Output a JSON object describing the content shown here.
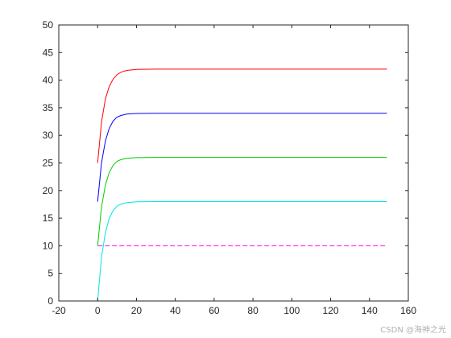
{
  "chart_data": {
    "type": "line",
    "title": "",
    "xlabel": "",
    "ylabel": "",
    "xlim": [
      -20,
      160
    ],
    "ylim": [
      0,
      50
    ],
    "x_ticks": [
      -20,
      0,
      20,
      40,
      60,
      80,
      100,
      120,
      140,
      160
    ],
    "y_ticks": [
      0,
      5,
      10,
      15,
      20,
      25,
      30,
      35,
      40,
      45,
      50
    ],
    "grid": false,
    "legend": "none",
    "x": [
      0,
      2,
      4,
      6,
      8,
      10,
      12,
      15,
      20,
      30,
      50,
      100,
      149
    ],
    "series": [
      {
        "color": "#ff0000",
        "style": "solid",
        "values": [
          25,
          32.4,
          36.6,
          38.9,
          40.2,
          41.0,
          41.45,
          41.77,
          41.95,
          42,
          42,
          42,
          42
        ]
      },
      {
        "color": "#0000ff",
        "style": "solid",
        "values": [
          18,
          25.0,
          29.0,
          31.3,
          32.6,
          33.3,
          33.6,
          33.85,
          33.97,
          34,
          34,
          34,
          34
        ]
      },
      {
        "color": "#00cc00",
        "style": "solid",
        "values": [
          10,
          17.0,
          21.0,
          23.3,
          24.6,
          25.3,
          25.6,
          25.85,
          25.97,
          26,
          26,
          26,
          26
        ]
      },
      {
        "color": "#00e5e5",
        "style": "solid",
        "values": [
          0,
          7.9,
          12.4,
          15.0,
          16.4,
          17.2,
          17.55,
          17.82,
          17.96,
          18,
          18,
          18,
          18
        ]
      },
      {
        "color": "#ff00ff",
        "style": "dashed",
        "values": [
          10,
          10,
          10,
          10,
          10,
          10,
          10,
          10,
          10,
          10,
          10,
          10,
          10
        ]
      },
      {
        "color": "#ff00ff",
        "style": "dashed",
        "values": [
          50,
          50,
          50,
          50,
          50,
          50,
          50,
          50,
          50,
          50,
          50,
          50,
          50
        ]
      }
    ]
  },
  "watermark": "CSDN @海神之光"
}
